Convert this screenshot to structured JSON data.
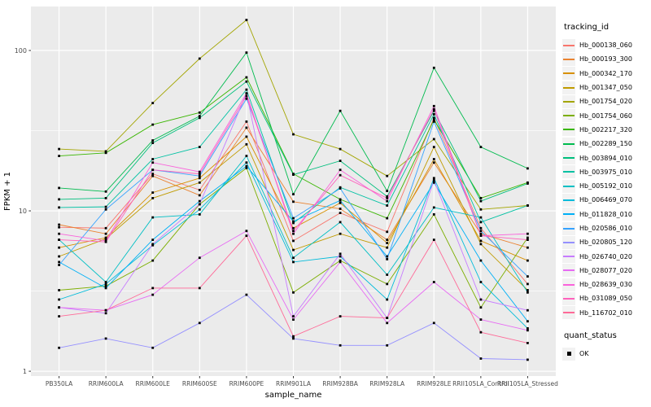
{
  "ui": {
    "background_color": "#FFFFFF",
    "panel_color": "#EBEBEB",
    "grid_color": "#FFFFFF",
    "tick_text_color": "#4D4D4D",
    "axis_title_color": "#000000",
    "legend_key_fill": "#F2F2F2",
    "point_color": "#000000"
  },
  "chart_data": {
    "type": "line",
    "title": "",
    "xlabel": "sample_name",
    "ylabel": "FPKM + 1",
    "y_scale": "log10",
    "y_ticks": [
      1,
      10,
      100
    ],
    "y_minor_ticks": [
      3.162,
      31.62
    ],
    "ylim": [
      0.93,
      188
    ],
    "grid": true,
    "legend_position": "right",
    "legend_title": "tracking_id",
    "categories": [
      "PB350LA",
      "RRIM600LA",
      "RRIM600LE",
      "RRIM600SE",
      "RRIM600PE",
      "RRIM901LA",
      "RRIM928BA",
      "RRIM928LA",
      "RRIM928LE",
      "RRII105LA_Control",
      "RRII105LA_Stressed"
    ],
    "series": [
      {
        "name": "Hb_000138_060",
        "color": "#F8766D",
        "values": [
          7.9,
          7.8,
          17,
          13.5,
          36,
          6.5,
          9.7,
          7.4,
          38,
          7.8,
          3.5
        ]
      },
      {
        "name": "Hb_000193_300",
        "color": "#EA8331",
        "values": [
          8.2,
          7.2,
          16.5,
          12.5,
          33,
          11.4,
          10.3,
          6.6,
          20,
          7.2,
          5.9
        ]
      },
      {
        "name": "Hb_000342_170",
        "color": "#D89000",
        "values": [
          5.9,
          6.8,
          13,
          16,
          29,
          7.8,
          11.2,
          6.3,
          21,
          6.5,
          4.9
        ]
      },
      {
        "name": "Hb_001347_050",
        "color": "#C09B00",
        "values": [
          5.2,
          6.7,
          12,
          15,
          26,
          5.7,
          7.2,
          5.9,
          25,
          6.2,
          3.2
        ]
      },
      {
        "name": "Hb_001754_020",
        "color": "#A3A500",
        "values": [
          24.3,
          23.5,
          47,
          89,
          155,
          30,
          24.3,
          16.5,
          28,
          10.2,
          10.8
        ]
      },
      {
        "name": "Hb_001754_060",
        "color": "#7CAE00",
        "values": [
          3.2,
          3.4,
          4.9,
          11,
          18.5,
          3.1,
          4.9,
          3.5,
          9.5,
          2.5,
          6.8
        ]
      },
      {
        "name": "Hb_002217_320",
        "color": "#39B600",
        "values": [
          22,
          23,
          34.5,
          41,
          68,
          17,
          11.8,
          9,
          37,
          12,
          15
        ]
      },
      {
        "name": "Hb_002289_150",
        "color": "#00BB4E",
        "values": [
          13.9,
          13.2,
          27.5,
          39,
          97,
          12.7,
          42,
          13.3,
          78,
          25,
          18.4
        ]
      },
      {
        "name": "Hb_003894_010",
        "color": "#00BF7D",
        "values": [
          11.8,
          12,
          26.5,
          38,
          64,
          16.8,
          20.5,
          12.3,
          42,
          11.5,
          14.8
        ]
      },
      {
        "name": "Hb_003975_010",
        "color": "#00C1A3",
        "values": [
          10.5,
          10.6,
          21,
          25,
          57,
          8.4,
          14,
          10.8,
          40,
          8.5,
          10.8
        ]
      },
      {
        "name": "Hb_005192_010",
        "color": "#00BFC4",
        "values": [
          6.6,
          3.6,
          9.1,
          9.5,
          22,
          5.1,
          8.5,
          4,
          10.5,
          9.1,
          3.1
        ]
      },
      {
        "name": "Hb_006469_070",
        "color": "#00BBDA",
        "values": [
          2.8,
          3.5,
          6.1,
          10.2,
          20,
          4.8,
          5.2,
          2.8,
          16,
          3.6,
          1.85
        ]
      },
      {
        "name": "Hb_011828_010",
        "color": "#00B0F6",
        "values": [
          4.8,
          3.3,
          6.6,
          11.5,
          19,
          8.6,
          11.6,
          5.2,
          15,
          4.9,
          2.05
        ]
      },
      {
        "name": "Hb_020586_010",
        "color": "#35A2FF",
        "values": [
          4.6,
          10.2,
          18,
          16.5,
          50,
          9,
          13.8,
          5,
          36,
          7.5,
          3.9
        ]
      },
      {
        "name": "Hb_020805_120",
        "color": "#9590FF",
        "values": [
          1.4,
          1.6,
          1.4,
          2,
          3,
          1.6,
          1.45,
          1.45,
          2,
          1.2,
          1.18
        ]
      },
      {
        "name": "Hb_026740_020",
        "color": "#C77CFF",
        "values": [
          2.5,
          2.3,
          6.2,
          11,
          54,
          2.2,
          5.4,
          2.15,
          15.5,
          2.8,
          2.4
        ]
      },
      {
        "name": "Hb_028077_020",
        "color": "#E76BF3",
        "values": [
          2.5,
          2.4,
          3,
          5.1,
          7.5,
          2.1,
          4.8,
          2,
          3.6,
          2.1,
          1.8
        ]
      },
      {
        "name": "Hb_028639_030",
        "color": "#FA62DB",
        "values": [
          7.2,
          6.5,
          20,
          17.5,
          54,
          7.2,
          18,
          11.5,
          45,
          7,
          7.2
        ]
      },
      {
        "name": "Hb_031089_050",
        "color": "#FF62BC",
        "values": [
          6.6,
          6.4,
          18,
          17,
          52,
          7.5,
          16.7,
          12,
          43,
          7,
          6.6
        ]
      },
      {
        "name": "Hb_116702_010",
        "color": "#FF6A98",
        "values": [
          2.2,
          2.4,
          3.3,
          3.3,
          7,
          1.65,
          2.2,
          2.15,
          6.6,
          1.75,
          1.5
        ]
      }
    ],
    "legend2": {
      "title": "quant_status",
      "items": [
        {
          "label": "OK",
          "marker": "filled-square",
          "color": "#000000"
        }
      ]
    },
    "point_shape": "filled-square"
  }
}
